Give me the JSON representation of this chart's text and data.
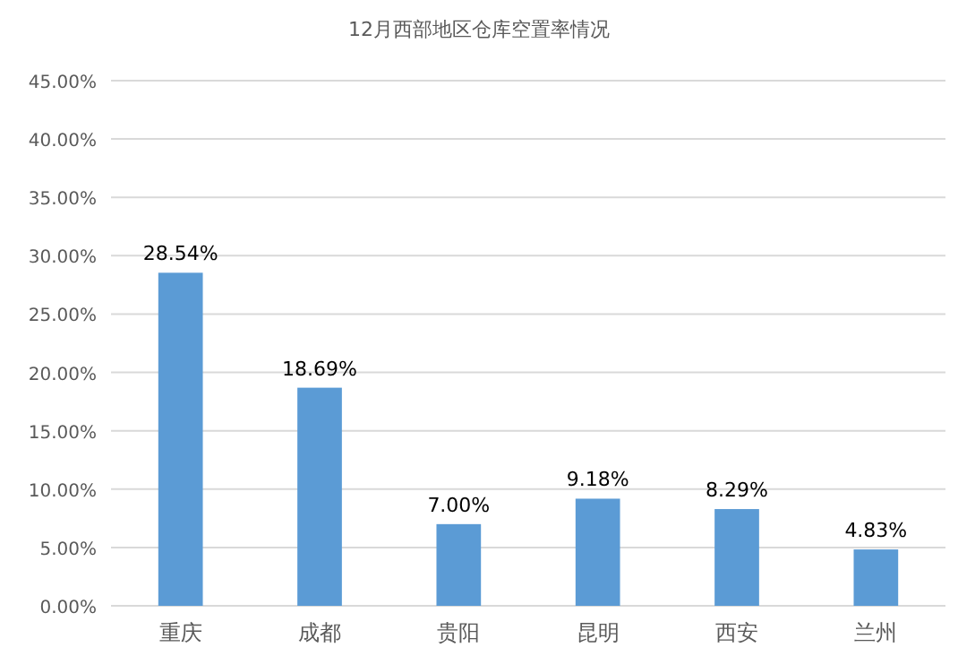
{
  "chart_data": {
    "type": "bar",
    "title": "12月西部地区仓库空置率情况",
    "categories": [
      "重庆",
      "成都",
      "贵阳",
      "昆明",
      "西安",
      "兰州"
    ],
    "values": [
      28.54,
      18.69,
      7.0,
      9.18,
      8.29,
      4.83
    ],
    "value_labels": [
      "28.54%",
      "18.69%",
      "7.00%",
      "9.18%",
      "8.29%",
      "4.83%"
    ],
    "color": "#5b9bd5",
    "ylim": [
      0,
      45
    ],
    "yticks": [
      {
        "value": 0,
        "label": "0.00%"
      },
      {
        "value": 5,
        "label": "5.00%"
      },
      {
        "value": 10,
        "label": "10.00%"
      },
      {
        "value": 15,
        "label": "15.00%"
      },
      {
        "value": 20,
        "label": "20.00%"
      },
      {
        "value": 25,
        "label": "25.00%"
      },
      {
        "value": 30,
        "label": "30.00%"
      },
      {
        "value": 35,
        "label": "35.00%"
      },
      {
        "value": 40,
        "label": "40.00%"
      },
      {
        "value": 45,
        "label": "45.00%"
      }
    ],
    "grid": "y"
  }
}
